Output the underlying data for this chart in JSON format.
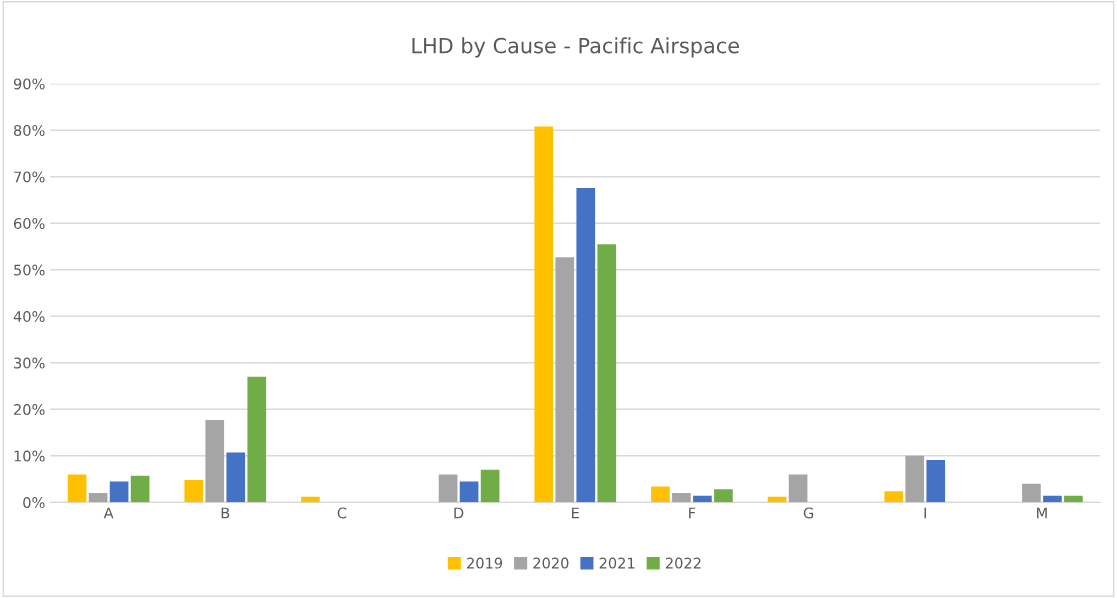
{
  "chart_data": {
    "type": "bar",
    "title": "LHD by Cause - Pacific Airspace",
    "categories": [
      "A",
      "B",
      "C",
      "D",
      "E",
      "F",
      "G",
      "I",
      "M"
    ],
    "series": [
      {
        "name": "2019",
        "color": "#ffc000",
        "values": [
          6,
          4.8,
          1.2,
          0,
          80.8,
          3.4,
          1.2,
          2.4,
          0
        ]
      },
      {
        "name": "2020",
        "color": "#a5a5a5",
        "values": [
          2,
          17.7,
          0,
          6,
          52.7,
          2,
          6,
          10,
          4
        ]
      },
      {
        "name": "2021",
        "color": "#4472c4",
        "values": [
          4.5,
          10.7,
          0,
          4.5,
          67.6,
          1.4,
          0,
          9.1,
          1.4
        ]
      },
      {
        "name": "2022",
        "color": "#70ad47",
        "values": [
          5.7,
          27,
          0,
          7,
          55.5,
          2.8,
          0,
          0,
          1.4
        ]
      }
    ],
    "ylim": [
      0,
      90
    ],
    "yticks": [
      {
        "value": 0,
        "label": "0%"
      },
      {
        "value": 10,
        "label": "10%"
      },
      {
        "value": 20,
        "label": "20%"
      },
      {
        "value": 30,
        "label": "30%"
      },
      {
        "value": 40,
        "label": "40%"
      },
      {
        "value": 50,
        "label": "50%"
      },
      {
        "value": 60,
        "label": "60%"
      },
      {
        "value": 70,
        "label": "70%"
      },
      {
        "value": 80,
        "label": "80%"
      },
      {
        "value": 90,
        "label": "90%"
      }
    ],
    "grid": "y",
    "legend": "bottom"
  }
}
